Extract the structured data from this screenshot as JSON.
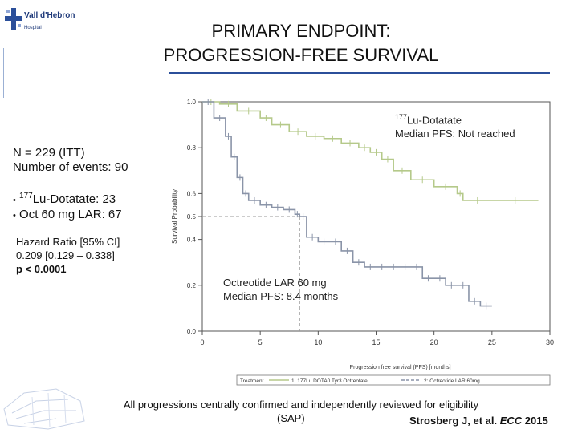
{
  "logo": {
    "name": "Vall d'Hebron",
    "sub": "Hospital"
  },
  "slide_title": [
    "PRIMARY ENDPOINT:",
    "PROGRESSION-FREE SURVIVAL"
  ],
  "left_panel": {
    "n_line": "N = 229 (ITT)",
    "events_line": "Number of events: 90",
    "arm1_sup": "177",
    "arm1_text": "Lu-Dotatate:  23",
    "arm2_text": "Oct 60 mg LAR:  67",
    "bullet": "•",
    "hr_line": "Hazard Ratio [95% CI]",
    "ci_line": "0.209  [0.129 – 0.338]",
    "p_line": "p < 0.0001"
  },
  "annotations": {
    "lu_sup": "177",
    "lu_name": "Lu-Dotatate",
    "lu_median": "Median PFS: Not reached",
    "oct_name": "Octreotide LAR 60 mg",
    "oct_median": "Median PFS: 8.4 months"
  },
  "legend": {
    "label": "Treatment",
    "item1": "1: 177Lu DOTA0 Tyr3 Octreotate",
    "item2": "2: Octreotide LAR 60mg"
  },
  "footer": {
    "line1": "All progressions centrally confirmed and independently reviewed for eligibility",
    "line2": "(SAP)",
    "citation_main": "Strosberg J, et al. ",
    "citation_italic": "ECC",
    "citation_year": " 2015"
  },
  "chart_data": {
    "type": "line",
    "title": "",
    "xlabel": "Progression free survival (PFS) [months]",
    "ylabel": "Survival Probability",
    "xlim": [
      0,
      30
    ],
    "ylim": [
      0,
      1.0
    ],
    "xticks": [
      0,
      5,
      10,
      15,
      20,
      25,
      30
    ],
    "yticks": [
      0.0,
      0.2,
      0.4,
      0.5,
      0.6,
      0.8,
      1.0
    ],
    "reference_lines": {
      "y": 0.5,
      "x": 8.4
    },
    "series": [
      {
        "name": "1: 177Lu DOTA0 Tyr3 Octreotate",
        "color": "#b5c98a",
        "x": [
          0,
          1.5,
          3,
          5,
          6,
          7.5,
          9,
          10.5,
          12,
          13.5,
          14.5,
          15.5,
          16.5,
          18,
          20,
          22,
          22.5,
          25,
          29
        ],
        "y": [
          1.0,
          0.99,
          0.96,
          0.93,
          0.9,
          0.87,
          0.85,
          0.84,
          0.82,
          0.8,
          0.78,
          0.75,
          0.7,
          0.66,
          0.63,
          0.6,
          0.57,
          0.57,
          0.57
        ]
      },
      {
        "name": "2: Octreotide LAR 60mg",
        "color": "#8a94a8",
        "x": [
          0,
          1,
          2,
          2.5,
          3,
          3.5,
          4,
          5,
          6,
          7,
          8,
          8.4,
          9,
          10,
          11,
          12,
          13,
          14,
          15,
          16,
          17,
          18,
          19,
          20,
          21,
          22,
          23,
          24,
          25
        ],
        "y": [
          1.0,
          0.93,
          0.85,
          0.76,
          0.67,
          0.6,
          0.57,
          0.55,
          0.54,
          0.53,
          0.51,
          0.5,
          0.41,
          0.39,
          0.39,
          0.35,
          0.3,
          0.28,
          0.28,
          0.28,
          0.28,
          0.28,
          0.23,
          0.23,
          0.2,
          0.2,
          0.13,
          0.11,
          0.11
        ]
      }
    ]
  }
}
